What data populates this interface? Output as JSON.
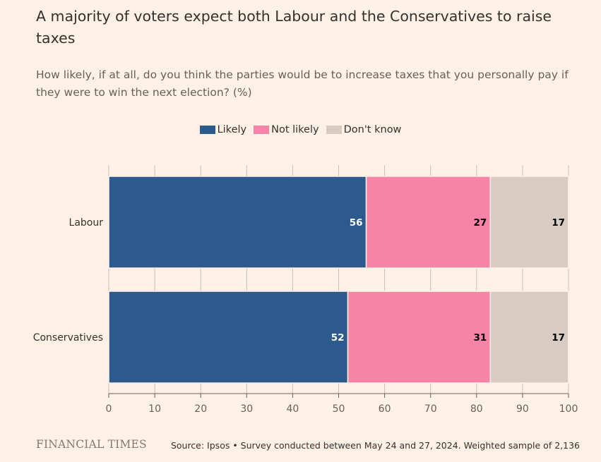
{
  "title": "A majority of voters expect both Labour and the Conservatives to raise taxes",
  "subtitle": "How likely, if at all, do you think the parties would be to increase taxes that you personally pay if they were to win the next election? (%)",
  "colors": {
    "likely": "#2d5a8c",
    "not_likely": "#f883a8",
    "dont_know": "#d8ccc2",
    "grid": "#c9bfb5",
    "axis": "#66605c"
  },
  "footer": {
    "logo": "FINANCIAL TIMES",
    "source": "Source: Ipsos • Survey conducted between May 24 and 27, 2024. Weighted sample of 2,136"
  },
  "chart_data": {
    "type": "bar",
    "orientation": "horizontal",
    "stacked": true,
    "categories": [
      "Labour",
      "Conservatives"
    ],
    "series": [
      {
        "name": "Likely",
        "values": [
          56,
          52
        ]
      },
      {
        "name": "Not likely",
        "values": [
          27,
          31
        ]
      },
      {
        "name": "Don't know",
        "values": [
          17,
          17
        ]
      }
    ],
    "xlim": [
      0,
      100
    ],
    "xticks": [
      0,
      10,
      20,
      30,
      40,
      50,
      60,
      70,
      80,
      90,
      100
    ],
    "grid": true,
    "legend": "top-center"
  }
}
